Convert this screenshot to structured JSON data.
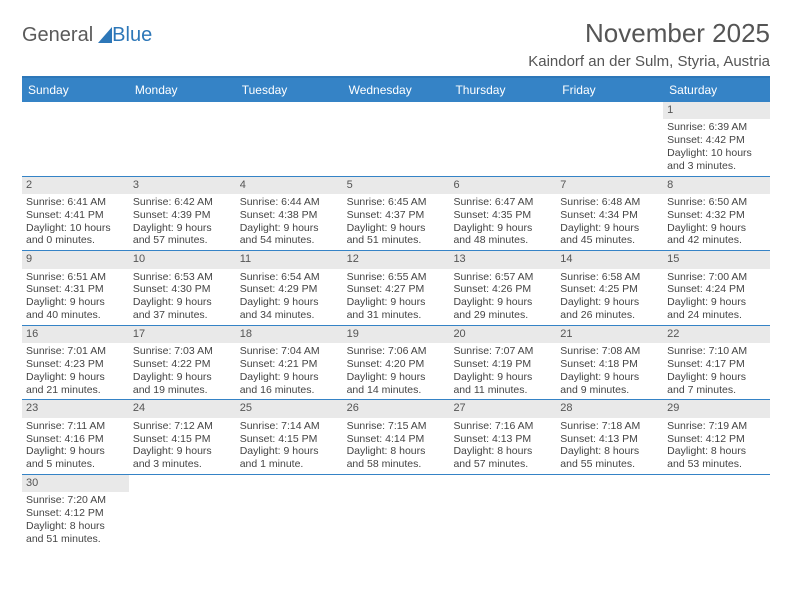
{
  "brand": {
    "general": "General",
    "blue": "Blue"
  },
  "title": "November 2025",
  "location": "Kaindorf an der Sulm, Styria, Austria",
  "dayNames": [
    "Sunday",
    "Monday",
    "Tuesday",
    "Wednesday",
    "Thursday",
    "Friday",
    "Saturday"
  ],
  "colors": {
    "headerBar": "#3583c6",
    "borderBlue": "#2d77b8",
    "dayNumBg": "#e9e9e9",
    "text": "#444444"
  },
  "weeks": [
    [
      {
        "empty": true
      },
      {
        "empty": true
      },
      {
        "empty": true
      },
      {
        "empty": true
      },
      {
        "empty": true
      },
      {
        "empty": true
      },
      {
        "n": "1",
        "sr": "Sunrise: 6:39 AM",
        "ss": "Sunset: 4:42 PM",
        "d1": "Daylight: 10 hours",
        "d2": "and 3 minutes."
      }
    ],
    [
      {
        "n": "2",
        "sr": "Sunrise: 6:41 AM",
        "ss": "Sunset: 4:41 PM",
        "d1": "Daylight: 10 hours",
        "d2": "and 0 minutes."
      },
      {
        "n": "3",
        "sr": "Sunrise: 6:42 AM",
        "ss": "Sunset: 4:39 PM",
        "d1": "Daylight: 9 hours",
        "d2": "and 57 minutes."
      },
      {
        "n": "4",
        "sr": "Sunrise: 6:44 AM",
        "ss": "Sunset: 4:38 PM",
        "d1": "Daylight: 9 hours",
        "d2": "and 54 minutes."
      },
      {
        "n": "5",
        "sr": "Sunrise: 6:45 AM",
        "ss": "Sunset: 4:37 PM",
        "d1": "Daylight: 9 hours",
        "d2": "and 51 minutes."
      },
      {
        "n": "6",
        "sr": "Sunrise: 6:47 AM",
        "ss": "Sunset: 4:35 PM",
        "d1": "Daylight: 9 hours",
        "d2": "and 48 minutes."
      },
      {
        "n": "7",
        "sr": "Sunrise: 6:48 AM",
        "ss": "Sunset: 4:34 PM",
        "d1": "Daylight: 9 hours",
        "d2": "and 45 minutes."
      },
      {
        "n": "8",
        "sr": "Sunrise: 6:50 AM",
        "ss": "Sunset: 4:32 PM",
        "d1": "Daylight: 9 hours",
        "d2": "and 42 minutes."
      }
    ],
    [
      {
        "n": "9",
        "sr": "Sunrise: 6:51 AM",
        "ss": "Sunset: 4:31 PM",
        "d1": "Daylight: 9 hours",
        "d2": "and 40 minutes."
      },
      {
        "n": "10",
        "sr": "Sunrise: 6:53 AM",
        "ss": "Sunset: 4:30 PM",
        "d1": "Daylight: 9 hours",
        "d2": "and 37 minutes."
      },
      {
        "n": "11",
        "sr": "Sunrise: 6:54 AM",
        "ss": "Sunset: 4:29 PM",
        "d1": "Daylight: 9 hours",
        "d2": "and 34 minutes."
      },
      {
        "n": "12",
        "sr": "Sunrise: 6:55 AM",
        "ss": "Sunset: 4:27 PM",
        "d1": "Daylight: 9 hours",
        "d2": "and 31 minutes."
      },
      {
        "n": "13",
        "sr": "Sunrise: 6:57 AM",
        "ss": "Sunset: 4:26 PM",
        "d1": "Daylight: 9 hours",
        "d2": "and 29 minutes."
      },
      {
        "n": "14",
        "sr": "Sunrise: 6:58 AM",
        "ss": "Sunset: 4:25 PM",
        "d1": "Daylight: 9 hours",
        "d2": "and 26 minutes."
      },
      {
        "n": "15",
        "sr": "Sunrise: 7:00 AM",
        "ss": "Sunset: 4:24 PM",
        "d1": "Daylight: 9 hours",
        "d2": "and 24 minutes."
      }
    ],
    [
      {
        "n": "16",
        "sr": "Sunrise: 7:01 AM",
        "ss": "Sunset: 4:23 PM",
        "d1": "Daylight: 9 hours",
        "d2": "and 21 minutes."
      },
      {
        "n": "17",
        "sr": "Sunrise: 7:03 AM",
        "ss": "Sunset: 4:22 PM",
        "d1": "Daylight: 9 hours",
        "d2": "and 19 minutes."
      },
      {
        "n": "18",
        "sr": "Sunrise: 7:04 AM",
        "ss": "Sunset: 4:21 PM",
        "d1": "Daylight: 9 hours",
        "d2": "and 16 minutes."
      },
      {
        "n": "19",
        "sr": "Sunrise: 7:06 AM",
        "ss": "Sunset: 4:20 PM",
        "d1": "Daylight: 9 hours",
        "d2": "and 14 minutes."
      },
      {
        "n": "20",
        "sr": "Sunrise: 7:07 AM",
        "ss": "Sunset: 4:19 PM",
        "d1": "Daylight: 9 hours",
        "d2": "and 11 minutes."
      },
      {
        "n": "21",
        "sr": "Sunrise: 7:08 AM",
        "ss": "Sunset: 4:18 PM",
        "d1": "Daylight: 9 hours",
        "d2": "and 9 minutes."
      },
      {
        "n": "22",
        "sr": "Sunrise: 7:10 AM",
        "ss": "Sunset: 4:17 PM",
        "d1": "Daylight: 9 hours",
        "d2": "and 7 minutes."
      }
    ],
    [
      {
        "n": "23",
        "sr": "Sunrise: 7:11 AM",
        "ss": "Sunset: 4:16 PM",
        "d1": "Daylight: 9 hours",
        "d2": "and 5 minutes."
      },
      {
        "n": "24",
        "sr": "Sunrise: 7:12 AM",
        "ss": "Sunset: 4:15 PM",
        "d1": "Daylight: 9 hours",
        "d2": "and 3 minutes."
      },
      {
        "n": "25",
        "sr": "Sunrise: 7:14 AM",
        "ss": "Sunset: 4:15 PM",
        "d1": "Daylight: 9 hours",
        "d2": "and 1 minute."
      },
      {
        "n": "26",
        "sr": "Sunrise: 7:15 AM",
        "ss": "Sunset: 4:14 PM",
        "d1": "Daylight: 8 hours",
        "d2": "and 58 minutes."
      },
      {
        "n": "27",
        "sr": "Sunrise: 7:16 AM",
        "ss": "Sunset: 4:13 PM",
        "d1": "Daylight: 8 hours",
        "d2": "and 57 minutes."
      },
      {
        "n": "28",
        "sr": "Sunrise: 7:18 AM",
        "ss": "Sunset: 4:13 PM",
        "d1": "Daylight: 8 hours",
        "d2": "and 55 minutes."
      },
      {
        "n": "29",
        "sr": "Sunrise: 7:19 AM",
        "ss": "Sunset: 4:12 PM",
        "d1": "Daylight: 8 hours",
        "d2": "and 53 minutes."
      }
    ],
    [
      {
        "n": "30",
        "sr": "Sunrise: 7:20 AM",
        "ss": "Sunset: 4:12 PM",
        "d1": "Daylight: 8 hours",
        "d2": "and 51 minutes."
      },
      {
        "empty": true
      },
      {
        "empty": true
      },
      {
        "empty": true
      },
      {
        "empty": true
      },
      {
        "empty": true
      },
      {
        "empty": true
      }
    ]
  ]
}
